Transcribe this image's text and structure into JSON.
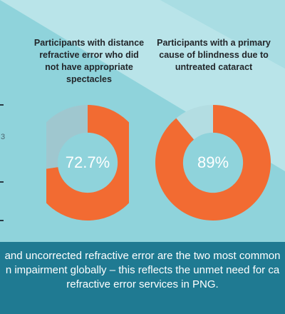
{
  "chart_data": [
    {
      "type": "pie",
      "donut": true,
      "title": "Participants with distance refractive error who did not have appropriate spectacles",
      "title_lines": [
        "Participants with distance",
        "refractive error who did",
        "not have appropriate",
        "spectacles"
      ],
      "value_label": "72.7%",
      "slices": [
        {
          "value": 72.7,
          "color": "#f26b32"
        },
        {
          "value": 27.3,
          "color": "#9fc7cf"
        }
      ]
    },
    {
      "type": "pie",
      "donut": true,
      "title": "Participants with a primary cause of blindness due to untreated cataract",
      "title_lines": [
        "Participants with a primary",
        "cause of blindness due to",
        "untreated cataract"
      ],
      "value_label": "89%",
      "slices": [
        {
          "value": 89,
          "color": "#f26b32"
        },
        {
          "value": 11,
          "color": "#b3dde2"
        }
      ]
    }
  ],
  "caption_lines": [
    "and uncorrected refractive error are the two most common",
    "n impairment globally – this reflects the unmet need for ca",
    "refractive error services in PNG."
  ],
  "axis_fragment": "3",
  "colors": {
    "accent": "#f26b32",
    "background": "#8fd3db",
    "band": "#1f7a92",
    "text_dark": "#22262a"
  }
}
